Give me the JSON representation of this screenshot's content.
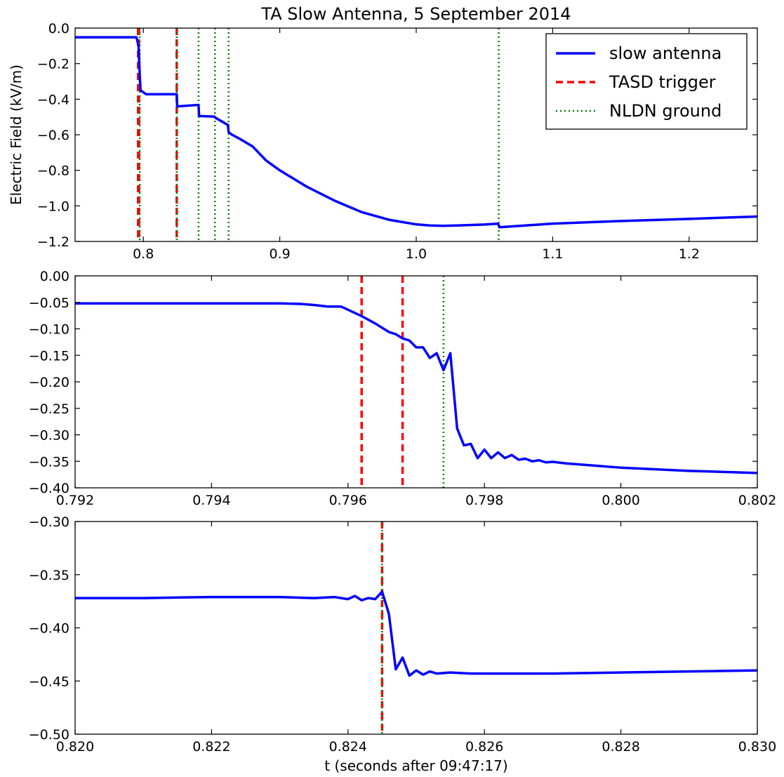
{
  "title": "TA Slow Antenna, 5 September 2014",
  "ylabel": "Electric Field (kV/m)",
  "xlabel": "t (seconds after 09:47:17)",
  "legend": {
    "placement": "top-right",
    "items": [
      {
        "label": "slow antenna",
        "style": "solid",
        "color": "#0000ff"
      },
      {
        "label": "TASD trigger",
        "style": "dashed",
        "color": "#ff0000"
      },
      {
        "label": "NLDN ground",
        "style": "dotted",
        "color": "#008000"
      }
    ]
  },
  "chart_data": [
    {
      "type": "line",
      "title": "TA Slow Antenna, 5 September 2014",
      "xlabel": "",
      "ylabel": "Electric Field (kV/m)",
      "xlim": [
        0.75,
        1.25
      ],
      "ylim": [
        -1.2,
        0.0
      ],
      "xticks": [
        0.8,
        0.9,
        1.0,
        1.1,
        1.2
      ],
      "xtick_labels": [
        "0.8",
        "0.9",
        "1.0",
        "1.1",
        "1.2"
      ],
      "yticks": [
        0.0,
        -0.2,
        -0.4,
        -0.6,
        -0.8,
        -1.0,
        -1.2
      ],
      "ytick_labels": [
        "0.0",
        "−0.2",
        "−0.4",
        "−0.6",
        "−0.8",
        "−1.0",
        "−1.2"
      ],
      "grid": false,
      "legend": "top-right",
      "series": [
        {
          "name": "slow antenna",
          "color": "#0000ff",
          "x": [
            0.75,
            0.795,
            0.7965,
            0.7975,
            0.798,
            0.802,
            0.8245,
            0.8248,
            0.8255,
            0.8405,
            0.8408,
            0.842,
            0.852,
            0.853,
            0.862,
            0.8625,
            0.865,
            0.87,
            0.88,
            0.89,
            0.9,
            0.92,
            0.94,
            0.96,
            0.98,
            1.0,
            1.01,
            1.02,
            1.03,
            1.05,
            1.06,
            1.061,
            1.08,
            1.1,
            1.15,
            1.2,
            1.25
          ],
          "y": [
            -0.052,
            -0.052,
            -0.1,
            -0.29,
            -0.35,
            -0.372,
            -0.372,
            -0.44,
            -0.44,
            -0.432,
            -0.492,
            -0.495,
            -0.498,
            -0.505,
            -0.545,
            -0.585,
            -0.6,
            -0.62,
            -0.665,
            -0.745,
            -0.8,
            -0.893,
            -0.97,
            -1.035,
            -1.078,
            -1.104,
            -1.11,
            -1.112,
            -1.11,
            -1.105,
            -1.1,
            -1.12,
            -1.11,
            -1.1,
            -1.085,
            -1.073,
            -1.06
          ]
        }
      ],
      "vlines_tasd": [
        0.7962,
        0.7968,
        0.8245
      ],
      "vlines_nldn": [
        0.7974,
        0.8245,
        0.8405,
        0.8525,
        0.8625,
        1.0605
      ]
    },
    {
      "type": "line",
      "xlabel": "",
      "ylabel": "",
      "xlim": [
        0.792,
        0.802
      ],
      "ylim": [
        -0.4,
        0.0
      ],
      "xticks": [
        0.792,
        0.794,
        0.796,
        0.798,
        0.8,
        0.802
      ],
      "xtick_labels": [
        "0.792",
        "0.794",
        "0.796",
        "0.798",
        "0.800",
        "0.802"
      ],
      "yticks": [
        0.0,
        -0.05,
        -0.1,
        -0.15,
        -0.2,
        -0.25,
        -0.3,
        -0.35,
        -0.4
      ],
      "ytick_labels": [
        "0.00",
        "−0.05",
        "−0.10",
        "−0.15",
        "−0.20",
        "−0.25",
        "−0.30",
        "−0.35",
        "−0.40"
      ],
      "grid": false,
      "series": [
        {
          "name": "slow antenna",
          "color": "#0000ff",
          "x": [
            0.792,
            0.793,
            0.794,
            0.795,
            0.7953,
            0.7955,
            0.7957,
            0.7959,
            0.796,
            0.7962,
            0.7964,
            0.7966,
            0.7967,
            0.7968,
            0.7969,
            0.797,
            0.7971,
            0.7972,
            0.7973,
            0.7974,
            0.7975,
            0.7976,
            0.7977,
            0.7978,
            0.7979,
            0.798,
            0.7981,
            0.7982,
            0.7983,
            0.7984,
            0.7985,
            0.7986,
            0.7987,
            0.7988,
            0.7989,
            0.799,
            0.7992,
            0.7995,
            0.8,
            0.801,
            0.802
          ],
          "y": [
            -0.052,
            -0.052,
            -0.052,
            -0.052,
            -0.053,
            -0.055,
            -0.058,
            -0.058,
            -0.064,
            -0.076,
            -0.09,
            -0.106,
            -0.11,
            -0.118,
            -0.122,
            -0.135,
            -0.135,
            -0.155,
            -0.146,
            -0.178,
            -0.146,
            -0.288,
            -0.32,
            -0.317,
            -0.344,
            -0.328,
            -0.344,
            -0.333,
            -0.344,
            -0.338,
            -0.347,
            -0.345,
            -0.35,
            -0.348,
            -0.352,
            -0.351,
            -0.354,
            -0.357,
            -0.362,
            -0.368,
            -0.372
          ]
        }
      ],
      "vlines_tasd": [
        0.7962,
        0.7968
      ],
      "vlines_nldn": [
        0.7974
      ]
    },
    {
      "type": "line",
      "xlabel": "t (seconds after 09:47:17)",
      "ylabel": "",
      "xlim": [
        0.82,
        0.83
      ],
      "ylim": [
        -0.5,
        -0.3
      ],
      "xticks": [
        0.82,
        0.822,
        0.824,
        0.826,
        0.828,
        0.83
      ],
      "xtick_labels": [
        "0.820",
        "0.822",
        "0.824",
        "0.826",
        "0.828",
        "0.830"
      ],
      "yticks": [
        -0.3,
        -0.35,
        -0.4,
        -0.45,
        -0.5
      ],
      "ytick_labels": [
        "−0.30",
        "−0.35",
        "−0.40",
        "−0.45",
        "−0.50"
      ],
      "grid": false,
      "series": [
        {
          "name": "slow antenna",
          "color": "#0000ff",
          "x": [
            0.82,
            0.821,
            0.822,
            0.823,
            0.8235,
            0.8238,
            0.824,
            0.8241,
            0.8242,
            0.8243,
            0.8244,
            0.8245,
            0.8246,
            0.8247,
            0.8248,
            0.8249,
            0.825,
            0.8251,
            0.8252,
            0.8253,
            0.8255,
            0.8258,
            0.826,
            0.827,
            0.828,
            0.829,
            0.83
          ],
          "y": [
            -0.372,
            -0.372,
            -0.371,
            -0.371,
            -0.372,
            -0.371,
            -0.373,
            -0.37,
            -0.374,
            -0.372,
            -0.373,
            -0.366,
            -0.387,
            -0.439,
            -0.428,
            -0.445,
            -0.44,
            -0.444,
            -0.441,
            -0.443,
            -0.442,
            -0.443,
            -0.443,
            -0.443,
            -0.442,
            -0.441,
            -0.44
          ]
        }
      ],
      "vlines_tasd": [
        0.8245
      ],
      "vlines_nldn": [
        0.8245
      ]
    }
  ]
}
